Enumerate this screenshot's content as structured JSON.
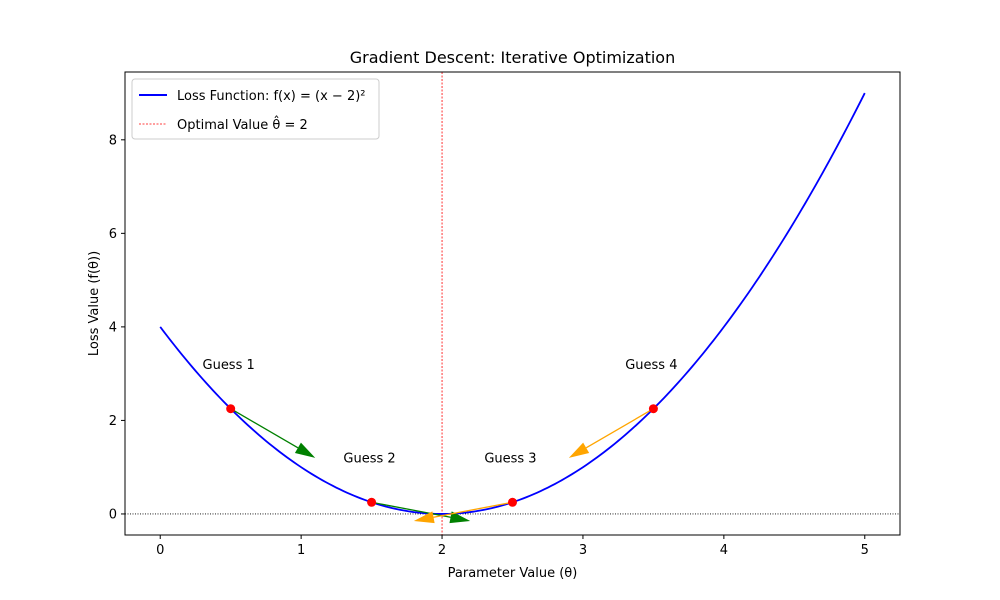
{
  "chart_data": {
    "type": "line",
    "title": "Gradient Descent: Iterative Optimization",
    "xlabel": "Parameter Value (θ)",
    "ylabel": "Loss Value (f(θ))",
    "xlim": [
      -0.25,
      5.25
    ],
    "ylim": [
      -0.45,
      9.45
    ],
    "xticks": [
      0,
      1,
      2,
      3,
      4,
      5
    ],
    "yticks": [
      0,
      2,
      4,
      6,
      8
    ],
    "grid": false,
    "legend_position": "top-left",
    "series": [
      {
        "name": "Loss Function: f(x) = (x − 2)²",
        "kind": "curve",
        "formula": "(x-2)^2",
        "x_range": [
          0,
          5
        ],
        "color": "#0000ff"
      }
    ],
    "reference_lines": [
      {
        "name": "Optimal Value θ̂ = 2",
        "orientation": "vertical",
        "value": 2,
        "color": "#ff0000",
        "style": "dashed",
        "in_legend": true
      },
      {
        "orientation": "horizontal",
        "value": 0,
        "color": "#000000",
        "style": "dotted",
        "in_legend": false
      }
    ],
    "points": [
      {
        "label": "Guess 1",
        "x": 0.5,
        "y": 2.25
      },
      {
        "label": "Guess 2",
        "x": 1.5,
        "y": 0.25
      },
      {
        "label": "Guess 3",
        "x": 2.5,
        "y": 0.25
      },
      {
        "label": "Guess 4",
        "x": 3.5,
        "y": 2.25
      }
    ],
    "point_color": "#ff0000",
    "arrows": [
      {
        "from": [
          0.5,
          2.25
        ],
        "to": [
          1.1,
          1.2
        ],
        "color": "#008000"
      },
      {
        "from": [
          1.5,
          0.25
        ],
        "to": [
          2.2,
          -0.15
        ],
        "color": "#008000"
      },
      {
        "from": [
          2.5,
          0.25
        ],
        "to": [
          1.8,
          -0.15
        ],
        "color": "#ffa500"
      },
      {
        "from": [
          3.5,
          2.25
        ],
        "to": [
          2.9,
          1.2
        ],
        "color": "#ffa500"
      }
    ],
    "annotations": [
      {
        "text": "Guess 1",
        "x": 0.3,
        "y": 3.1
      },
      {
        "text": "Guess 2",
        "x": 1.3,
        "y": 1.1
      },
      {
        "text": "Guess 3",
        "x": 2.3,
        "y": 1.1
      },
      {
        "text": "Guess 4",
        "x": 3.3,
        "y": 3.1
      }
    ]
  }
}
